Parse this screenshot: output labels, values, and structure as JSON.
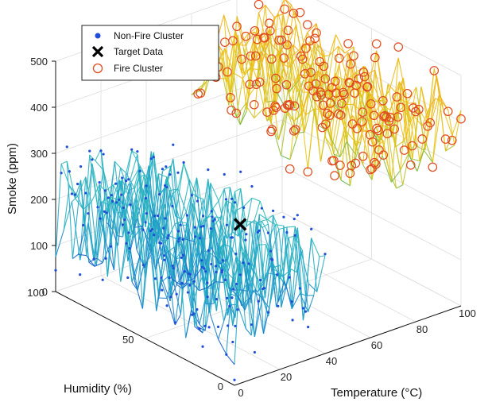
{
  "chart_data": {
    "type": "scatter",
    "view": "3d",
    "grid": true,
    "legend_position": "top-left",
    "axes": {
      "x": {
        "label": "Temperature (°C)",
        "range": [
          0,
          100
        ],
        "ticks": [
          "0",
          "20",
          "40",
          "60",
          "80",
          "100"
        ]
      },
      "y": {
        "label": "Humidity (%)",
        "range": [
          0,
          100
        ],
        "ticks": [
          "0",
          "50",
          "100"
        ]
      },
      "z": {
        "label": "Smoke (ppm)",
        "range": [
          0,
          500
        ],
        "ticks": [
          "0",
          "100",
          "200",
          "300",
          "400",
          "500"
        ]
      }
    },
    "series": [
      {
        "name": "Non-Fire Cluster",
        "marker": "filled-dot",
        "color": "#1f4fd8",
        "x_range": [
          0,
          40
        ],
        "y_range": [
          0,
          100
        ],
        "z_range": [
          0,
          300
        ],
        "surface_colors": [
          "#0a2ecf",
          "#22a6c8",
          "#38c7b5"
        ]
      },
      {
        "name": "Target Data",
        "marker": "x",
        "color": "#000000",
        "points": [
          {
            "x": 42,
            "y": 50,
            "z": 175
          }
        ]
      },
      {
        "name": "Fire Cluster",
        "marker": "open-circle",
        "color": "#e24a1c",
        "x_range": [
          60,
          100
        ],
        "y_range": [
          0,
          100
        ],
        "z_range": [
          250,
          500
        ],
        "surface_colors": [
          "#1fae6a",
          "#e8c81a",
          "#f5a01a"
        ]
      }
    ]
  }
}
